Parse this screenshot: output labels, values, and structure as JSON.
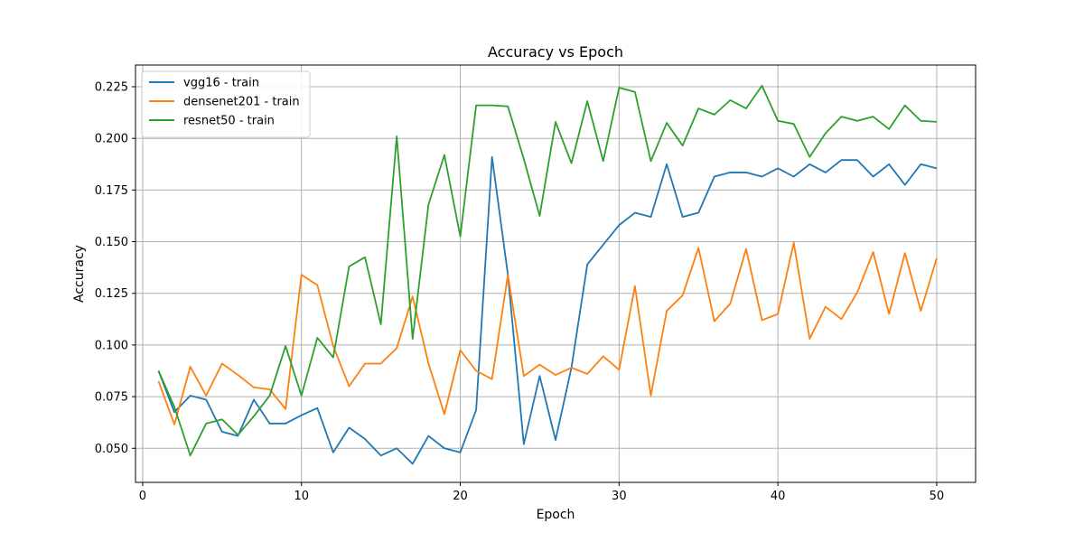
{
  "chart_data": {
    "type": "line",
    "title": "Accuracy vs Epoch",
    "xlabel": "Epoch",
    "ylabel": "Accuracy",
    "xlim": [
      -0.45,
      52.45
    ],
    "ylim": [
      0.0335,
      0.2355
    ],
    "xticks": [
      0,
      10,
      20,
      30,
      40,
      50
    ],
    "yticks": [
      0.05,
      0.075,
      0.1,
      0.125,
      0.15,
      0.175,
      0.2,
      0.225
    ],
    "ytick_labels": [
      "0.050",
      "0.075",
      "0.100",
      "0.125",
      "0.150",
      "0.175",
      "0.200",
      "0.225"
    ],
    "grid": true,
    "legend_position": "top-left",
    "x": [
      1,
      2,
      3,
      4,
      5,
      6,
      7,
      8,
      9,
      10,
      11,
      12,
      13,
      14,
      15,
      16,
      17,
      18,
      19,
      20,
      21,
      22,
      23,
      24,
      25,
      26,
      27,
      28,
      29,
      30,
      31,
      32,
      33,
      34,
      35,
      36,
      37,
      38,
      39,
      40,
      41,
      42,
      43,
      44,
      45,
      46,
      47,
      48,
      49,
      50
    ],
    "series": [
      {
        "name": "vgg16 - train",
        "color": "#1f77b4",
        "values": [
          0.0875,
          0.0675,
          0.0755,
          0.0735,
          0.058,
          0.056,
          0.0735,
          0.062,
          0.062,
          0.066,
          0.0695,
          0.048,
          0.06,
          0.0545,
          0.0465,
          0.05,
          0.0425,
          0.056,
          0.05,
          0.048,
          0.0685,
          0.191,
          0.134,
          0.052,
          0.085,
          0.054,
          0.089,
          0.139,
          0.1485,
          0.158,
          0.164,
          0.162,
          0.1875,
          0.162,
          0.164,
          0.1815,
          0.1835,
          0.1835,
          0.1815,
          0.1855,
          0.1815,
          0.1875,
          0.1835,
          0.1895,
          0.1895,
          0.1815,
          0.1875,
          0.1775,
          0.1875,
          0.1855
        ]
      },
      {
        "name": "densenet201 - train",
        "color": "#ff7f0e",
        "values": [
          0.0825,
          0.0615,
          0.0895,
          0.0755,
          0.091,
          0.0855,
          0.0795,
          0.0785,
          0.069,
          0.134,
          0.129,
          0.0995,
          0.08,
          0.091,
          0.091,
          0.0985,
          0.1235,
          0.091,
          0.0665,
          0.0975,
          0.0875,
          0.0835,
          0.134,
          0.085,
          0.0905,
          0.0855,
          0.089,
          0.086,
          0.0945,
          0.088,
          0.1285,
          0.0755,
          0.1165,
          0.124,
          0.147,
          0.1115,
          0.12,
          0.1465,
          0.112,
          0.115,
          0.1495,
          0.103,
          0.1185,
          0.1125,
          0.1255,
          0.145,
          0.115,
          0.1445,
          0.1165,
          0.142
        ]
      },
      {
        "name": "resnet50 - train",
        "color": "#2ca02c",
        "values": [
          0.0875,
          0.07,
          0.0465,
          0.062,
          0.064,
          0.0565,
          0.0655,
          0.0755,
          0.0995,
          0.0755,
          0.1035,
          0.094,
          0.138,
          0.1425,
          0.11,
          0.201,
          0.103,
          0.168,
          0.192,
          0.1525,
          0.216,
          0.216,
          0.2155,
          0.19,
          0.1625,
          0.208,
          0.188,
          0.218,
          0.189,
          0.2245,
          0.2225,
          0.189,
          0.2075,
          0.1965,
          0.2145,
          0.2115,
          0.2185,
          0.2145,
          0.2255,
          0.2085,
          0.207,
          0.191,
          0.2025,
          0.2105,
          0.2085,
          0.2105,
          0.2045,
          0.216,
          0.2085,
          0.208
        ]
      }
    ]
  }
}
